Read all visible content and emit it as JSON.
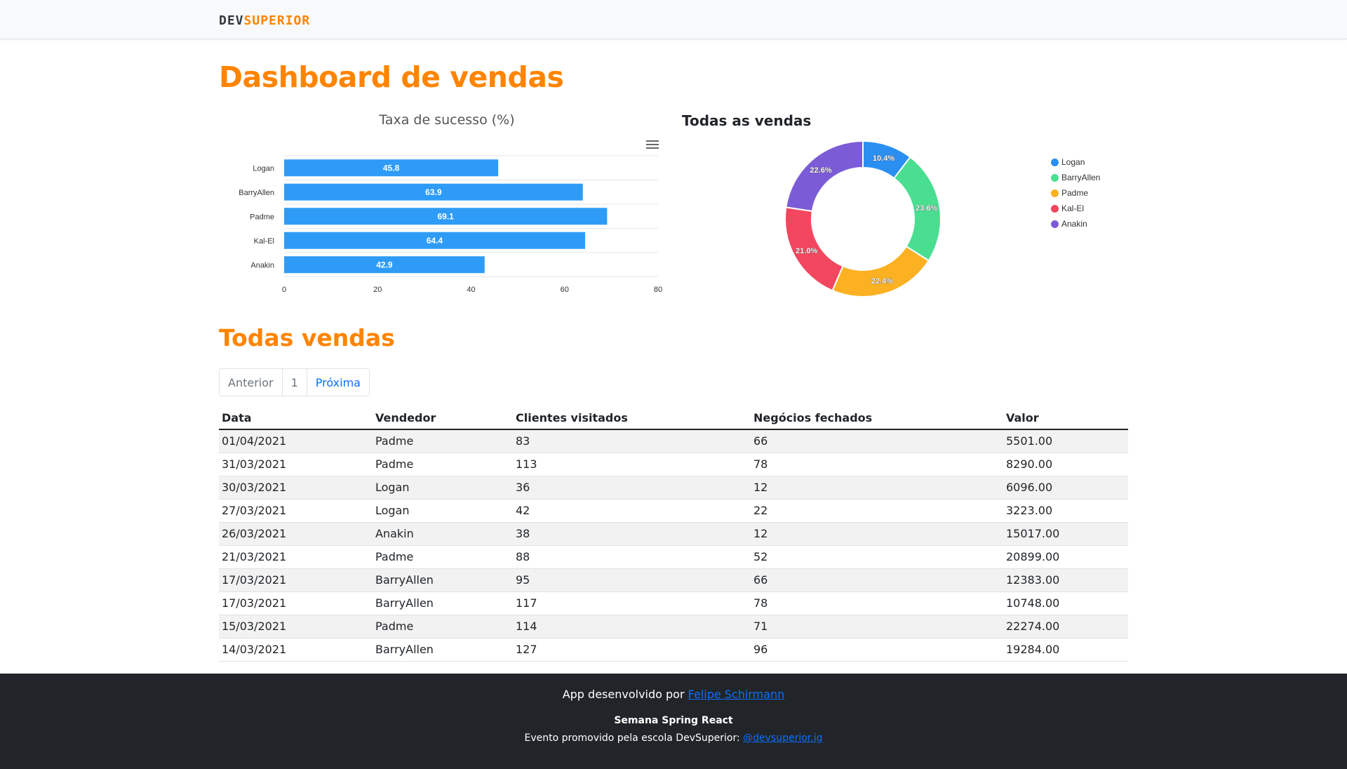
{
  "brand": {
    "dev": "DEV",
    "superior": "SUPERIOR"
  },
  "dashboard": {
    "title": "Dashboard de vendas"
  },
  "chart_data": [
    {
      "type": "bar",
      "orientation": "horizontal",
      "title": "Taxa de sucesso (%)",
      "categories": [
        "Logan",
        "BarryAllen",
        "Padme",
        "Kal-El",
        "Anakin"
      ],
      "values": [
        45.8,
        63.9,
        69.1,
        64.4,
        42.9
      ],
      "xlim": [
        0,
        80
      ],
      "ticks": [
        "0",
        "20",
        "40",
        "60",
        "80"
      ],
      "color": "#2e9cf6",
      "grid": true,
      "menu_icon": "hamburger-menu-icon"
    },
    {
      "type": "pie",
      "donut": true,
      "title": "Todas as vendas",
      "categories": [
        "Logan",
        "BarryAllen",
        "Padme",
        "Kal-El",
        "Anakin"
      ],
      "values": [
        10.4,
        23.6,
        22.4,
        21.0,
        22.6
      ],
      "labels": [
        "10.4%",
        "23.6%",
        "22.4%",
        "21.0%",
        "22.6%"
      ],
      "colors": [
        "#2b8ff2",
        "#4ade91",
        "#fbb122",
        "#f2475f",
        "#7c5bd6"
      ],
      "legend": "right"
    }
  ],
  "sales": {
    "title": "Todas vendas",
    "pagination": {
      "previous": "Anterior",
      "current": "1",
      "next": "Próxima"
    },
    "columns": [
      "Data",
      "Vendedor",
      "Clientes visitados",
      "Negócios fechados",
      "Valor"
    ],
    "rows": [
      [
        "01/04/2021",
        "Padme",
        "83",
        "66",
        "5501.00"
      ],
      [
        "31/03/2021",
        "Padme",
        "113",
        "78",
        "8290.00"
      ],
      [
        "30/03/2021",
        "Logan",
        "36",
        "12",
        "6096.00"
      ],
      [
        "27/03/2021",
        "Logan",
        "42",
        "22",
        "3223.00"
      ],
      [
        "26/03/2021",
        "Anakin",
        "38",
        "12",
        "15017.00"
      ],
      [
        "21/03/2021",
        "Padme",
        "88",
        "52",
        "20899.00"
      ],
      [
        "17/03/2021",
        "BarryAllen",
        "95",
        "66",
        "12383.00"
      ],
      [
        "17/03/2021",
        "BarryAllen",
        "117",
        "78",
        "10748.00"
      ],
      [
        "15/03/2021",
        "Padme",
        "114",
        "71",
        "22274.00"
      ],
      [
        "14/03/2021",
        "BarryAllen",
        "127",
        "96",
        "19284.00"
      ]
    ]
  },
  "footer": {
    "line1_prefix": "App desenvolvido por ",
    "author_link": "Felipe Schirmann",
    "event_title": "Semana Spring React",
    "line3_prefix": "Evento promovido pela escola DevSuperior: ",
    "instagram_link": "@devsuperior.ig"
  }
}
